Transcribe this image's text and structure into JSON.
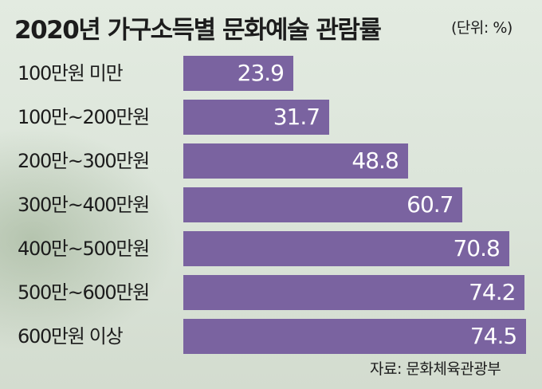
{
  "chart_data": {
    "type": "bar",
    "orientation": "horizontal",
    "title": "2020년 가구소득별 문화예술 관람률",
    "unit": "(단위: %)",
    "categories": [
      "100만원 미만",
      "100만~200만원",
      "200만~300만원",
      "300만~400만원",
      "400만~500만원",
      "500만~600만원",
      "600만원 이상"
    ],
    "values": [
      23.9,
      31.7,
      48.8,
      60.7,
      70.8,
      74.2,
      74.5
    ],
    "data_labels": [
      "23.9",
      "31.7",
      "48.8",
      "60.7",
      "70.8",
      "74.2",
      "74.5"
    ],
    "xlim": [
      0,
      80
    ],
    "bar_color": "#7a63a0",
    "label_color": "#ffffff",
    "grid": false,
    "legend": "none",
    "source": "자료: 문화체육관광부"
  }
}
